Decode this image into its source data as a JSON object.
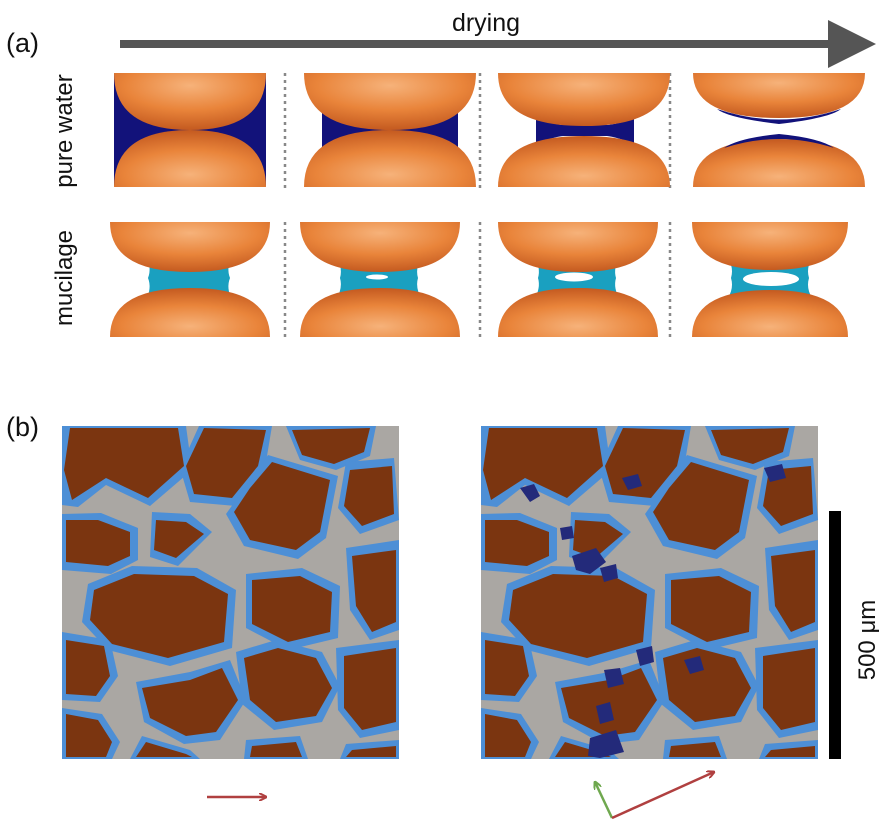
{
  "panel_a": {
    "label": "(a)",
    "arrow_label": "drying",
    "rows": [
      {
        "label": "pure water",
        "liquid_color": "#12127a"
      },
      {
        "label": "mucilage",
        "liquid_color": "#1aa0c0"
      }
    ],
    "stages": 4
  },
  "panel_b": {
    "label": "(b)",
    "scale_bar_label": "500 μm"
  },
  "colors": {
    "grain": "#e87f35",
    "grain_dark": "#b5501e",
    "grain_light": "#f4a566",
    "water": "#12127a",
    "mucilage": "#1aa0c0",
    "soil_particle": "#7b3510",
    "pore_air": "#aaa7a3",
    "pore_water": "#4d8fd6",
    "dark_water": "#232a7a",
    "arrow_main": "#555555",
    "arrow_red": "#b04040",
    "arrow_green": "#6fa84f",
    "scale_bar": "#000000"
  }
}
